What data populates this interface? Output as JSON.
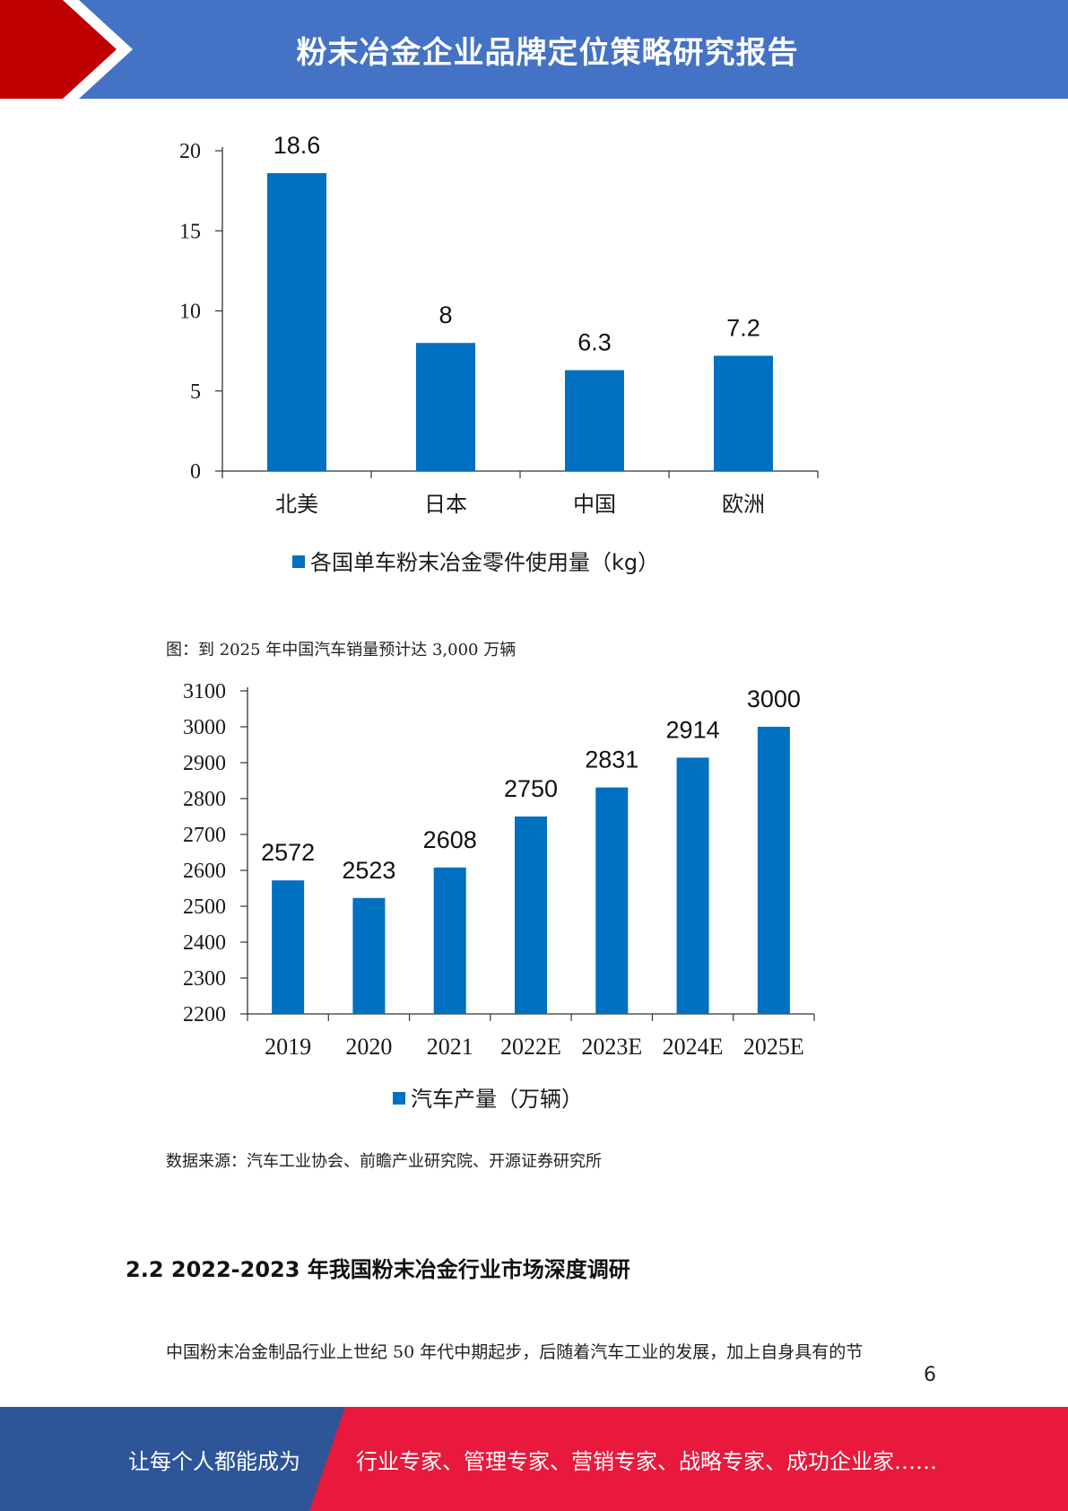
{
  "header": {
    "title": "粉末冶金企业品牌定位策略研究报告",
    "colors": {
      "band": "#4472c4",
      "chevron": "#c00000"
    }
  },
  "chart_data": [
    {
      "type": "bar",
      "categories": [
        "北美",
        "日本",
        "中国",
        "欧洲"
      ],
      "values": [
        18.6,
        8,
        6.3,
        7.2
      ],
      "value_labels": [
        "18.6",
        "8",
        "6.3",
        "7.2"
      ],
      "y_ticks": [
        "0",
        "5",
        "10",
        "15",
        "20"
      ],
      "ylim": [
        0,
        20
      ],
      "series": [
        {
          "name": "各国单车粉末冶金零件使用量（kg）",
          "values": [
            18.6,
            8,
            6.3,
            7.2
          ]
        }
      ],
      "legend": "bottom",
      "title": "",
      "color": "#0070c0"
    },
    {
      "type": "bar",
      "categories": [
        "2019",
        "2020",
        "2021",
        "2022E",
        "2023E",
        "2024E",
        "2025E"
      ],
      "values": [
        2572,
        2523,
        2608,
        2750,
        2831,
        2914,
        3000
      ],
      "value_labels": [
        "2572",
        "2523",
        "2608",
        "2750",
        "2831",
        "2914",
        "3000"
      ],
      "y_ticks": [
        "2200",
        "2300",
        "2400",
        "2500",
        "2600",
        "2700",
        "2800",
        "2900",
        "3000",
        "3100"
      ],
      "ylim": [
        2200,
        3100
      ],
      "series": [
        {
          "name": "汽车产量（万辆）",
          "values": [
            2572,
            2523,
            2608,
            2750,
            2831,
            2914,
            3000
          ]
        }
      ],
      "legend": "bottom",
      "title": "",
      "color": "#0070c0"
    }
  ],
  "captions": {
    "figure": "图：到 2025 年中国汽车销量预计达 3,000 万辆",
    "source": "数据来源：汽车工业协会、前瞻产业研究院、开源证券研究所"
  },
  "section": {
    "heading": "2.2 2022-2023 年我国粉末冶金行业市场深度调研",
    "paragraph": "中国粉末冶金制品行业上世纪 50 年代中期起步，后随着汽车工业的发展，加上自身具有的节"
  },
  "page_number": "6",
  "footer": {
    "left_text": "让每个人都能成为",
    "right_text": "行业专家、管理专家、营销专家、战略专家、成功企业家……",
    "colors": {
      "left": "#2e5597",
      "right": "#e8193c"
    }
  }
}
